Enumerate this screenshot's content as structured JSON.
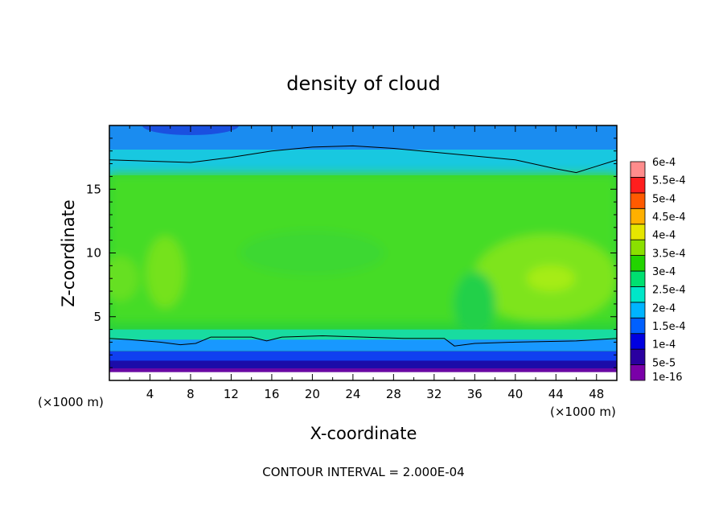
{
  "chart_data": {
    "type": "heatmap",
    "title": "density of cloud",
    "xlabel": "X-coordinate",
    "ylabel": "Z-coordinate",
    "x_unit_left": "(×1000 m)",
    "x_unit_right": "(×1000 m)",
    "footer": "CONTOUR INTERVAL = 2.000E-04",
    "xlim": [
      0,
      50
    ],
    "ylim": [
      0,
      20
    ],
    "xticks": [
      4,
      8,
      12,
      16,
      20,
      24,
      28,
      32,
      36,
      40,
      44,
      48
    ],
    "yticks": [
      5,
      10,
      15
    ],
    "colorbar": {
      "labels": [
        "6e-4",
        "5.5e-4",
        "5e-4",
        "4.5e-4",
        "4e-4",
        "3.5e-4",
        "3e-4",
        "2.5e-4",
        "2e-4",
        "1.5e-4",
        "1e-4",
        "5e-5",
        "1e-16"
      ],
      "colors": [
        "#7a00a8",
        "#2a00a0",
        "#0000e0",
        "#0060ff",
        "#00b4ff",
        "#00e6c8",
        "#00e070",
        "#22d400",
        "#8ae000",
        "#e6e600",
        "#ffb000",
        "#ff5a00",
        "#ff1e1e",
        "#ff8c8c"
      ]
    },
    "fields": [
      {
        "name": "cloud_density",
        "x_range": [
          0,
          50
        ],
        "z_range": [
          0,
          20
        ],
        "notes": "Green band ~2.3e-4–3.3e-4 between z≈3.5 and z≈17; maxima ~3.6e-4 near x≈43,z≈8 and x≈5,z≈8; blue/purple below z≈3; blue top above z≈17.5"
      }
    ]
  }
}
